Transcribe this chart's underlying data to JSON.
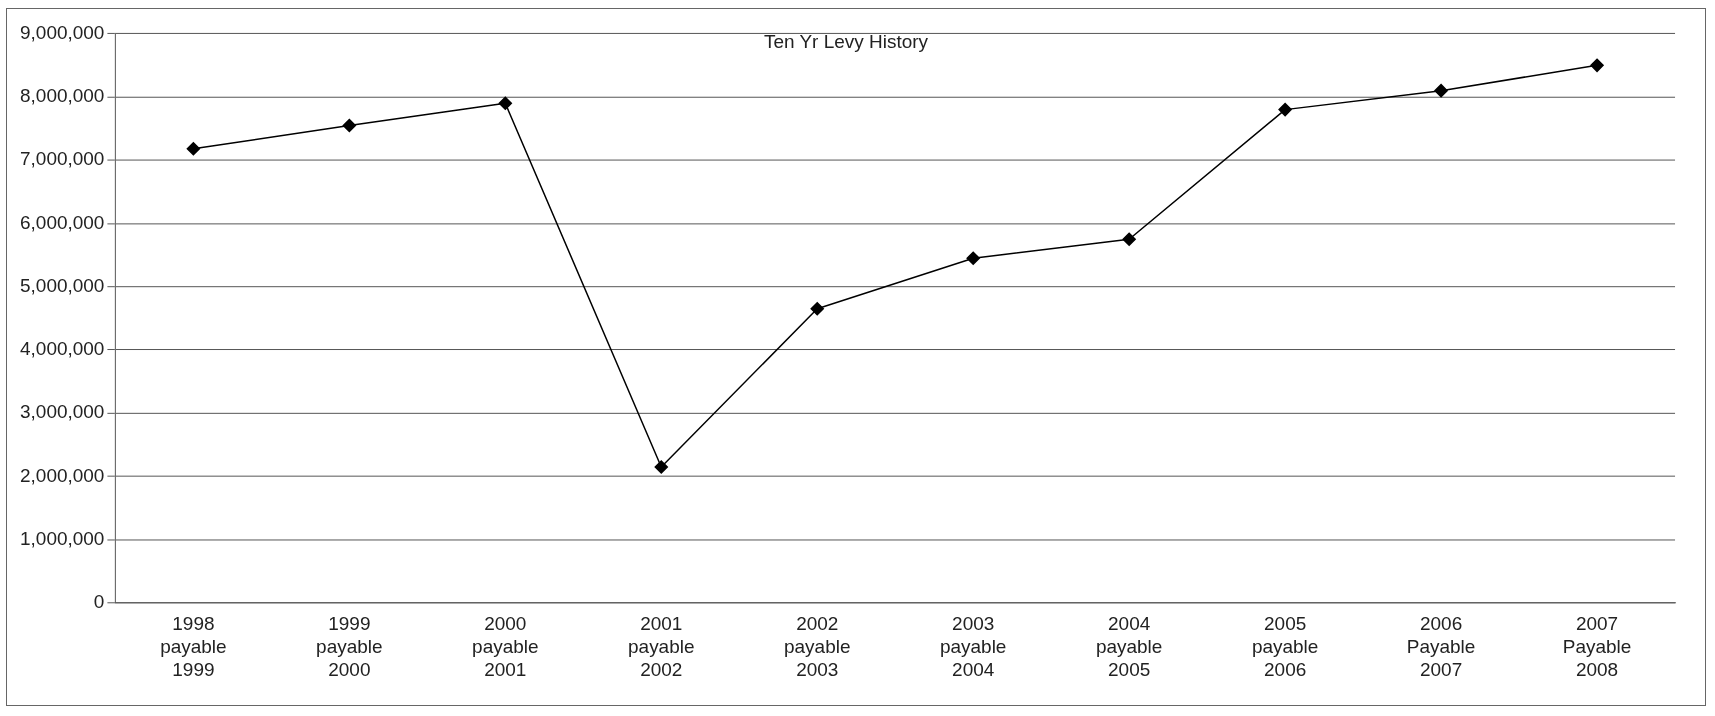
{
  "chart_data": {
    "type": "line",
    "title": "Ten Yr Levy History",
    "categories": [
      "1998 payable 1999",
      "1999 payable 2000",
      "2000 payable 2001",
      "2001 payable 2002",
      "2002 payable 2003",
      "2003 payable 2004",
      "2004 payable 2005",
      "2005 payable 2006",
      "2006 Payable 2007",
      "2007 Payable 2008"
    ],
    "series": [
      {
        "color": "#000000",
        "values": [
          7180000,
          7550000,
          7900000,
          2150000,
          4650000,
          5450000,
          5750000,
          7800000,
          8100000,
          8500000
        ]
      }
    ],
    "ylim": [
      0,
      9000000
    ],
    "yticks": [
      0,
      {
        "value": 1000000,
        "label": "1,000,000"
      },
      {
        "value": 2000000,
        "label": "2,000,000"
      },
      {
        "value": 3000000,
        "label": "3,000,000"
      },
      {
        "value": 4000000,
        "label": "4,000,000"
      },
      {
        "value": 5000000,
        "label": "5,000,000"
      },
      {
        "value": 6000000,
        "label": "6,000,000"
      },
      {
        "value": 7000000,
        "label": "7,000,000"
      },
      {
        "value": 8000000,
        "label": "8,000,000"
      },
      {
        "value": 9000000,
        "label": "9,000,000"
      }
    ],
    "grid": "y",
    "legend": false,
    "marker": "diamond",
    "line_style": "solid"
  }
}
